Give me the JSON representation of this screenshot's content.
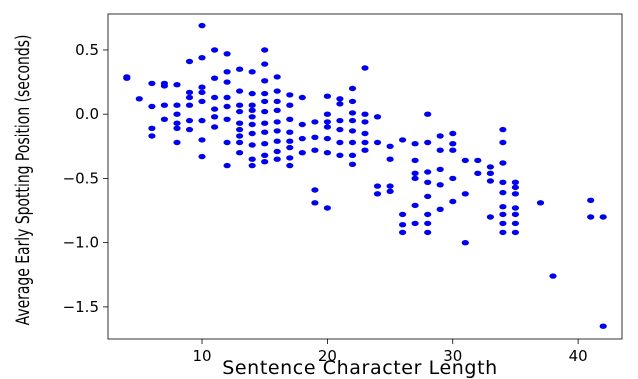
{
  "chart_data": {
    "type": "scatter",
    "title": "",
    "xlabel": "Sentence Character Length",
    "ylabel": "Average Early Spotting Position (seconds)",
    "xlim": [
      2.5,
      43.5
    ],
    "ylim": [
      -1.75,
      0.78
    ],
    "xticks": [
      10,
      20,
      30,
      40
    ],
    "yticks": [
      0.5,
      0.0,
      -0.5,
      -1.0,
      -1.5
    ],
    "ytick_labels": [
      "0.5",
      "0.0",
      "−0.5",
      "−1.0",
      "−1.5"
    ],
    "xtick_labels": [
      "10",
      "20",
      "30",
      "40"
    ],
    "grid": false,
    "marker_color": "#0000ee",
    "points": [
      [
        4,
        0.29
      ],
      [
        4,
        0.28
      ],
      [
        5,
        0.12
      ],
      [
        6,
        0.24
      ],
      [
        6,
        0.06
      ],
      [
        6,
        -0.11
      ],
      [
        6,
        -0.17
      ],
      [
        7,
        0.24
      ],
      [
        7,
        0.22
      ],
      [
        7,
        0.07
      ],
      [
        7,
        -0.04
      ],
      [
        8,
        0.23
      ],
      [
        8,
        0.07
      ],
      [
        8,
        0.0
      ],
      [
        8,
        -0.07
      ],
      [
        8,
        -0.11
      ],
      [
        8,
        -0.22
      ],
      [
        9,
        0.41
      ],
      [
        9,
        0.17
      ],
      [
        9,
        0.13
      ],
      [
        9,
        0.07
      ],
      [
        9,
        -0.05
      ],
      [
        9,
        -0.12
      ],
      [
        10,
        0.69
      ],
      [
        10,
        0.44
      ],
      [
        10,
        0.21
      ],
      [
        10,
        0.17
      ],
      [
        10,
        0.1
      ],
      [
        10,
        -0.05
      ],
      [
        10,
        -0.2
      ],
      [
        10,
        -0.33
      ],
      [
        11,
        0.5
      ],
      [
        11,
        0.28
      ],
      [
        11,
        0.13
      ],
      [
        11,
        0.04
      ],
      [
        11,
        -0.02
      ],
      [
        11,
        -0.1
      ],
      [
        12,
        0.47
      ],
      [
        12,
        0.33
      ],
      [
        12,
        0.25
      ],
      [
        12,
        0.13
      ],
      [
        12,
        0.06
      ],
      [
        12,
        -0.04
      ],
      [
        12,
        -0.22
      ],
      [
        12,
        -0.4
      ],
      [
        13,
        0.35
      ],
      [
        13,
        0.18
      ],
      [
        13,
        0.07
      ],
      [
        13,
        0.02
      ],
      [
        13,
        -0.07
      ],
      [
        13,
        -0.12
      ],
      [
        13,
        -0.17
      ],
      [
        13,
        -0.22
      ],
      [
        13,
        -0.3
      ],
      [
        14,
        0.33
      ],
      [
        14,
        0.16
      ],
      [
        14,
        0.07
      ],
      [
        14,
        0.03
      ],
      [
        14,
        -0.02
      ],
      [
        14,
        -0.08
      ],
      [
        14,
        -0.15
      ],
      [
        14,
        -0.24
      ],
      [
        14,
        -0.35
      ],
      [
        14,
        -0.4
      ],
      [
        15,
        0.5
      ],
      [
        15,
        0.39
      ],
      [
        15,
        0.26
      ],
      [
        15,
        0.16
      ],
      [
        15,
        0.1
      ],
      [
        15,
        0.02
      ],
      [
        15,
        -0.07
      ],
      [
        15,
        -0.14
      ],
      [
        15,
        -0.23
      ],
      [
        15,
        -0.32
      ],
      [
        15,
        -0.37
      ],
      [
        16,
        0.29
      ],
      [
        16,
        0.18
      ],
      [
        16,
        0.1
      ],
      [
        16,
        0.03
      ],
      [
        16,
        -0.06
      ],
      [
        16,
        -0.13
      ],
      [
        16,
        -0.21
      ],
      [
        16,
        -0.29
      ],
      [
        16,
        -0.35
      ],
      [
        17,
        0.15
      ],
      [
        17,
        0.07
      ],
      [
        17,
        -0.04
      ],
      [
        17,
        -0.14
      ],
      [
        17,
        -0.21
      ],
      [
        17,
        -0.26
      ],
      [
        17,
        -0.34
      ],
      [
        17,
        -0.4
      ],
      [
        18,
        0.13
      ],
      [
        18,
        -0.08
      ],
      [
        18,
        -0.19
      ],
      [
        18,
        -0.3
      ],
      [
        19,
        -0.06
      ],
      [
        19,
        -0.18
      ],
      [
        19,
        -0.28
      ],
      [
        19,
        -0.59
      ],
      [
        19,
        -0.69
      ],
      [
        20,
        0.14
      ],
      [
        20,
        0.0
      ],
      [
        20,
        -0.06
      ],
      [
        20,
        -0.1
      ],
      [
        20,
        -0.19
      ],
      [
        20,
        -0.3
      ],
      [
        20,
        -0.73
      ],
      [
        21,
        0.12
      ],
      [
        21,
        0.08
      ],
      [
        21,
        -0.05
      ],
      [
        21,
        -0.12
      ],
      [
        21,
        -0.22
      ],
      [
        21,
        -0.32
      ],
      [
        22,
        0.2
      ],
      [
        22,
        0.1
      ],
      [
        22,
        0.01
      ],
      [
        22,
        -0.05
      ],
      [
        22,
        -0.13
      ],
      [
        22,
        -0.22
      ],
      [
        22,
        -0.32
      ],
      [
        22,
        -0.39
      ],
      [
        23,
        0.36
      ],
      [
        23,
        0.0
      ],
      [
        23,
        -0.06
      ],
      [
        23,
        -0.15
      ],
      [
        23,
        -0.22
      ],
      [
        23,
        -0.28
      ],
      [
        24,
        -0.02
      ],
      [
        24,
        -0.22
      ],
      [
        24,
        -0.56
      ],
      [
        24,
        -0.62
      ],
      [
        25,
        -0.25
      ],
      [
        25,
        -0.35
      ],
      [
        25,
        -0.56
      ],
      [
        25,
        -0.6
      ],
      [
        26,
        -0.2
      ],
      [
        26,
        -0.78
      ],
      [
        26,
        -0.86
      ],
      [
        26,
        -0.92
      ],
      [
        27,
        -0.23
      ],
      [
        27,
        -0.36
      ],
      [
        27,
        -0.46
      ],
      [
        27,
        -0.5
      ],
      [
        27,
        -0.71
      ],
      [
        27,
        -0.85
      ],
      [
        28,
        0.0
      ],
      [
        28,
        -0.22
      ],
      [
        28,
        -0.45
      ],
      [
        28,
        -0.53
      ],
      [
        28,
        -0.64
      ],
      [
        28,
        -0.78
      ],
      [
        28,
        -0.85
      ],
      [
        28,
        -0.92
      ],
      [
        29,
        -0.17
      ],
      [
        29,
        -0.28
      ],
      [
        29,
        -0.43
      ],
      [
        29,
        -0.55
      ],
      [
        29,
        -0.74
      ],
      [
        30,
        -0.15
      ],
      [
        30,
        -0.23
      ],
      [
        30,
        -0.28
      ],
      [
        30,
        -0.5
      ],
      [
        30,
        -0.68
      ],
      [
        31,
        -0.36
      ],
      [
        31,
        -0.62
      ],
      [
        31,
        -1.0
      ],
      [
        32,
        -0.36
      ],
      [
        32,
        -0.46
      ],
      [
        33,
        -0.41
      ],
      [
        33,
        -0.46
      ],
      [
        33,
        -0.52
      ],
      [
        33,
        -0.8
      ],
      [
        34,
        -0.12
      ],
      [
        34,
        -0.22
      ],
      [
        34,
        -0.38
      ],
      [
        34,
        -0.53
      ],
      [
        34,
        -0.61
      ],
      [
        34,
        -0.72
      ],
      [
        34,
        -0.78
      ],
      [
        34,
        -0.85
      ],
      [
        34,
        -0.92
      ],
      [
        35,
        -0.53
      ],
      [
        35,
        -0.57
      ],
      [
        35,
        -0.62
      ],
      [
        35,
        -0.73
      ],
      [
        35,
        -0.78
      ],
      [
        35,
        -0.85
      ],
      [
        35,
        -0.92
      ],
      [
        37,
        -0.69
      ],
      [
        38,
        -1.26
      ],
      [
        41,
        -0.67
      ],
      [
        41,
        -0.8
      ],
      [
        42,
        -0.8
      ],
      [
        42,
        -1.65
      ]
    ]
  }
}
